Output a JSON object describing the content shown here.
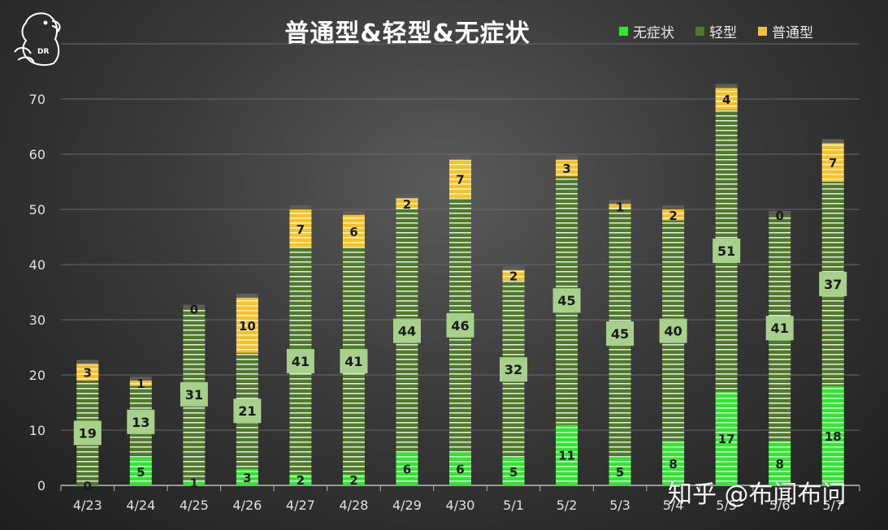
{
  "watermark": "知乎 @布闻布问",
  "logo_text": "DR",
  "chart_data": {
    "type": "bar",
    "stacked": true,
    "title": "普通型&轻型&无症状",
    "categories": [
      "4/23",
      "4/24",
      "4/25",
      "4/26",
      "4/27",
      "4/28",
      "4/29",
      "4/30",
      "5/1",
      "5/2",
      "5/3",
      "5/4",
      "5/5",
      "5/6",
      "5/7"
    ],
    "series": [
      {
        "name": "无症状",
        "color": "#2ee82e",
        "values": [
          0,
          5,
          1,
          3,
          2,
          2,
          6,
          6,
          5,
          11,
          5,
          8,
          17,
          8,
          18
        ]
      },
      {
        "name": "轻型",
        "color": "#4e7a2a",
        "values": [
          19,
          13,
          31,
          21,
          41,
          41,
          44,
          46,
          32,
          45,
          45,
          40,
          51,
          41,
          37
        ]
      },
      {
        "name": "普通型",
        "color": "#f7c324",
        "values": [
          3,
          1,
          0,
          10,
          7,
          6,
          2,
          7,
          2,
          3,
          1,
          2,
          4,
          0,
          7
        ]
      }
    ],
    "ylim": [
      0,
      80
    ],
    "yticks": [
      0,
      10,
      20,
      30,
      40,
      50,
      60,
      70
    ],
    "grid": true,
    "legend_position": "top-right"
  }
}
